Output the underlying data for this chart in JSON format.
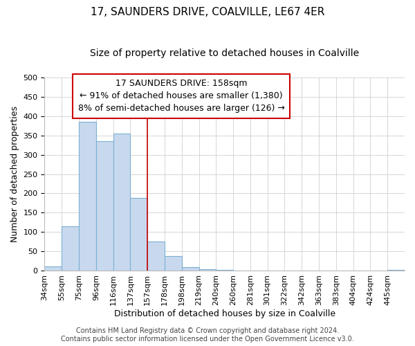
{
  "title": "17, SAUNDERS DRIVE, COALVILLE, LE67 4ER",
  "subtitle": "Size of property relative to detached houses in Coalville",
  "xlabel": "Distribution of detached houses by size in Coalville",
  "ylabel": "Number of detached properties",
  "bar_labels": [
    "34sqm",
    "55sqm",
    "75sqm",
    "96sqm",
    "116sqm",
    "137sqm",
    "157sqm",
    "178sqm",
    "198sqm",
    "219sqm",
    "240sqm",
    "260sqm",
    "281sqm",
    "301sqm",
    "322sqm",
    "342sqm",
    "363sqm",
    "383sqm",
    "404sqm",
    "424sqm",
    "445sqm"
  ],
  "bar_values": [
    12,
    115,
    385,
    335,
    355,
    188,
    76,
    38,
    10,
    5,
    2,
    1,
    0,
    0,
    0,
    0,
    0,
    0,
    0,
    0,
    2
  ],
  "bar_color": "#c8d9ee",
  "bar_edge_color": "#7bafd4",
  "vline_x": 6,
  "vline_color": "#cc0000",
  "ylim": [
    0,
    500
  ],
  "annotation_lines": [
    "17 SAUNDERS DRIVE: 158sqm",
    "← 91% of detached houses are smaller (1,380)",
    "8% of semi-detached houses are larger (126) →"
  ],
  "footer_lines": [
    "Contains HM Land Registry data © Crown copyright and database right 2024.",
    "Contains public sector information licensed under the Open Government Licence v3.0."
  ],
  "title_fontsize": 11,
  "subtitle_fontsize": 10,
  "xlabel_fontsize": 9,
  "ylabel_fontsize": 9,
  "tick_fontsize": 8,
  "annotation_fontsize": 9,
  "footer_fontsize": 7,
  "yticks": [
    0,
    50,
    100,
    150,
    200,
    250,
    300,
    350,
    400,
    450,
    500
  ]
}
